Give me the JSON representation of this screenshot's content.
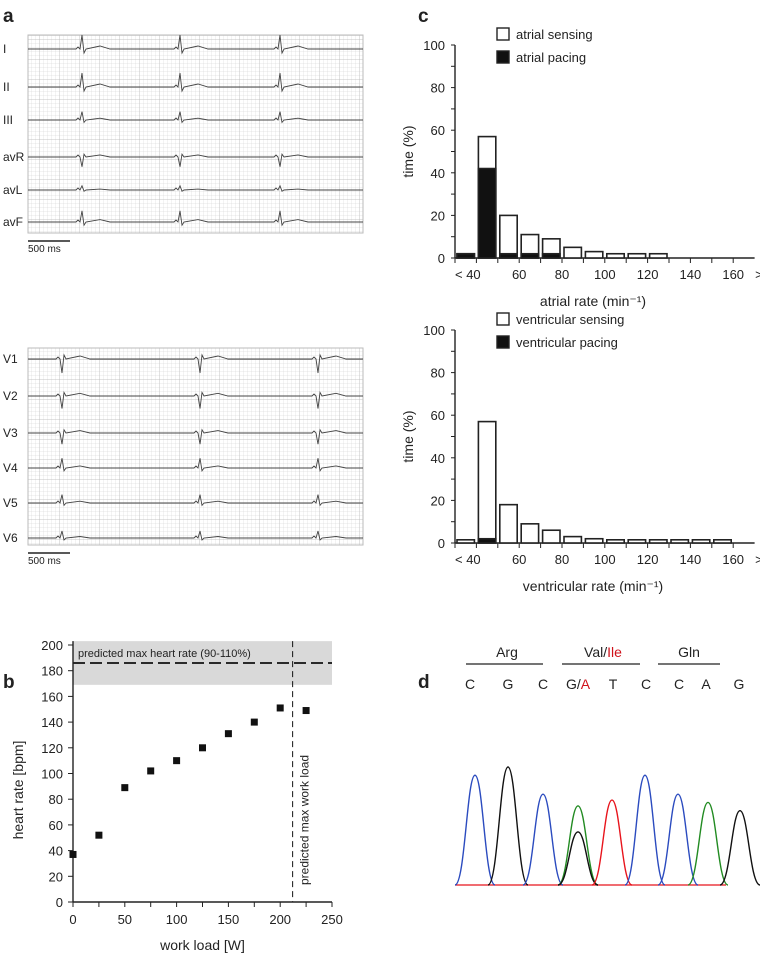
{
  "panels": {
    "a": "a",
    "b": "b",
    "c": "c",
    "d": "d"
  },
  "ecg": {
    "limb_leads": [
      "I",
      "II",
      "III",
      "avR",
      "avL",
      "avF"
    ],
    "chest_leads": [
      "V1",
      "V2",
      "V3",
      "V4",
      "V5",
      "V6"
    ],
    "scale_bar": "500 ms"
  },
  "colors": {
    "sensing": "#ffffff",
    "pacing": "#111111",
    "band": "#d9d9d9",
    "A": "#228b22",
    "C": "#2b4bbf",
    "G": "#111111",
    "T": "#e8141c",
    "mut": "#d0121b"
  },
  "chart_data": [
    {
      "type": "bar",
      "stacked": true,
      "xlabel": "atrial rate (min⁻¹)",
      "ylabel": "time (%)",
      "ylim": [
        0,
        100
      ],
      "yticks": [
        "0",
        "20",
        "40",
        "60",
        "80",
        "100"
      ],
      "xticks": [
        "< 40",
        "60",
        "80",
        "100",
        "120",
        "140",
        "160",
        ">"
      ],
      "categories": [
        "<40",
        "40-50",
        "50-60",
        "60-70",
        "70-80",
        "80-90",
        "90-100",
        "100-110",
        "110-120",
        "120-130",
        "130-140",
        "140-150",
        "150-160"
      ],
      "series": [
        {
          "name": "atrial sensing",
          "values": [
            0,
            15,
            18,
            9,
            7,
            5,
            3,
            2,
            2,
            2,
            0,
            0,
            0
          ]
        },
        {
          "name": "atrial pacing",
          "values": [
            2,
            42,
            2,
            2,
            2,
            0,
            0,
            0,
            0,
            0,
            0,
            0,
            0
          ]
        }
      ],
      "legend": "top"
    },
    {
      "type": "bar",
      "stacked": true,
      "xlabel": "ventricular rate (min⁻¹)",
      "ylabel": "time (%)",
      "ylim": [
        0,
        100
      ],
      "yticks": [
        "0",
        "20",
        "40",
        "60",
        "80",
        "100"
      ],
      "xticks": [
        "< 40",
        "60",
        "80",
        "100",
        "120",
        "140",
        "160",
        ">"
      ],
      "categories": [
        "<40",
        "40-50",
        "50-60",
        "60-70",
        "70-80",
        "80-90",
        "90-100",
        "100-110",
        "110-120",
        "120-130",
        "130-140",
        "140-150",
        "150-160"
      ],
      "series": [
        {
          "name": "ventricular sensing",
          "values": [
            1.5,
            55,
            18,
            9,
            6,
            3,
            2,
            1.5,
            1.5,
            1.5,
            1.5,
            1.5,
            1.5
          ]
        },
        {
          "name": "ventricular pacing",
          "values": [
            0,
            2,
            0,
            0,
            0,
            0,
            0,
            0,
            0,
            0,
            0,
            0,
            0
          ]
        }
      ],
      "legend": "top"
    },
    {
      "type": "scatter",
      "xlabel": "work load [W]",
      "ylabel": "heart rate [bpm]",
      "xlim": [
        0,
        250
      ],
      "ylim": [
        0,
        200
      ],
      "xticks": [
        0,
        50,
        100,
        150,
        200,
        250
      ],
      "yticks": [
        0,
        20,
        40,
        60,
        80,
        100,
        120,
        140,
        160,
        180,
        200
      ],
      "x": [
        0,
        25,
        50,
        75,
        100,
        125,
        150,
        175,
        200,
        225
      ],
      "y": [
        37,
        52,
        89,
        102,
        110,
        120,
        131,
        140,
        151,
        149
      ],
      "annotations": {
        "hline": 186,
        "hline_label": "predicted max heart rate (90-110%)",
        "band": [
          169,
          203
        ],
        "vline": 212,
        "vline_label": "predicted max work load"
      }
    },
    {
      "type": "chromatogram",
      "codons": [
        {
          "aa": "Arg",
          "bases": [
            "C",
            "G",
            "C"
          ]
        },
        {
          "aa_ref": "Val",
          "aa_sep": "/",
          "aa_mut": "Ile",
          "bases": [
            "G/A",
            "T",
            "C"
          ]
        },
        {
          "aa": "Gln",
          "bases": [
            "C",
            "A",
            "G"
          ]
        }
      ],
      "peaks": [
        {
          "base": "C",
          "h": 0.93
        },
        {
          "base": "G",
          "h": 1.0
        },
        {
          "base": "C",
          "h": 0.77
        },
        {
          "base": "A",
          "h": 0.67
        },
        {
          "base": "G",
          "h": 0.45
        },
        {
          "base": "T",
          "h": 0.72
        },
        {
          "base": "C",
          "h": 0.93
        },
        {
          "base": "C",
          "h": 0.77
        },
        {
          "base": "A",
          "h": 0.7
        },
        {
          "base": "G",
          "h": 0.63
        }
      ]
    }
  ]
}
